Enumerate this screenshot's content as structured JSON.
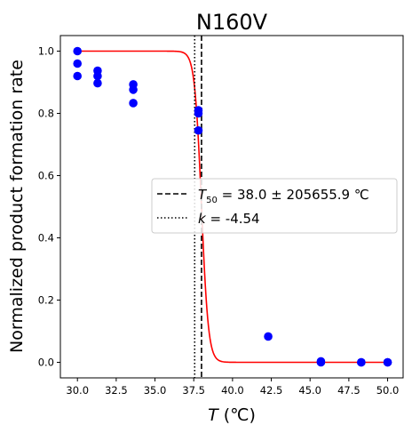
{
  "chart_data": {
    "type": "scatter",
    "title": "N160V",
    "xlabel": "T (℃)",
    "xlabel_italic": "T",
    "xlabel_unit": " (℃)",
    "ylabel": "Normalized product formation rate",
    "xlim": [
      28.9,
      51.0
    ],
    "ylim": [
      -0.05,
      1.05
    ],
    "x_ticks": [
      30.0,
      32.5,
      35.0,
      37.5,
      40.0,
      42.5,
      45.0,
      47.5,
      50.0
    ],
    "x_tick_labels": [
      "30.0",
      "32.5",
      "35.0",
      "37.5",
      "40.0",
      "42.5",
      "45.0",
      "47.5",
      "50.0"
    ],
    "y_ticks": [
      0.0,
      0.2,
      0.4,
      0.6,
      0.8,
      1.0
    ],
    "y_tick_labels": [
      "0.0",
      "0.2",
      "0.4",
      "0.6",
      "0.8",
      "1.0"
    ],
    "grid": false,
    "legend_position": "center-right",
    "points": {
      "color": "#0000ff",
      "x": [
        30.0,
        30.0,
        30.0,
        31.3,
        31.3,
        31.3,
        33.6,
        33.6,
        33.6,
        37.8,
        37.8,
        37.8,
        42.3,
        45.7,
        45.7,
        48.3,
        48.3,
        50.0,
        50.0
      ],
      "y": [
        1.0,
        0.96,
        0.92,
        0.937,
        0.92,
        0.897,
        0.893,
        0.876,
        0.833,
        0.81,
        0.8,
        0.745,
        0.083,
        0.003,
        0.0,
        0.0,
        0.0,
        0.0,
        0.0
      ]
    },
    "fit_curve": {
      "color": "#ff0000",
      "T50": 38.0,
      "k": -4.54,
      "x_start": 30.0,
      "x_end": 50.0
    },
    "vlines": [
      {
        "x": 38.0,
        "style": "dashed",
        "legend_main": "T",
        "legend_sub": "50",
        "legend_rest": " = 38.0 ± 205655.9 ℃"
      },
      {
        "x": 37.56,
        "style": "dotted",
        "legend_main": "k",
        "legend_sub": "",
        "legend_rest": " = -4.54"
      }
    ]
  }
}
